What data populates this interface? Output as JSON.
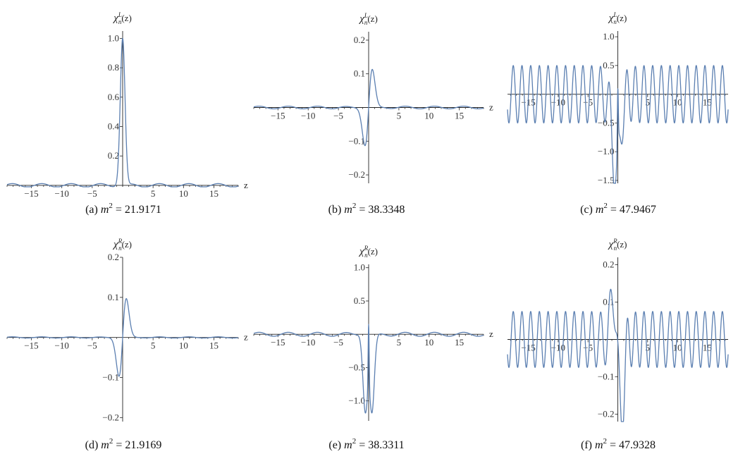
{
  "colors": {
    "curve": "#5b7fb1",
    "axis": "#222222"
  },
  "chart_data": [
    {
      "type": "line",
      "caption_tag": "(a)",
      "caption_value": "21.9171",
      "ylabel_base": "χ",
      "ylabel_super": "L",
      "ylabel_sub": "n",
      "ylabel_arg": "(z)",
      "xlabel": "z",
      "xlim": [
        -19,
        19
      ],
      "ylim": [
        -0.01,
        1.05
      ],
      "xticks": [
        -15,
        -10,
        -5,
        5,
        10,
        15
      ],
      "yticks": [
        0.2,
        0.4,
        0.6,
        0.8,
        1.0
      ],
      "peak": 1.0,
      "osc_amp": 0.012,
      "osc_freq": 1.3,
      "profile": "single_positive_peak"
    },
    {
      "type": "line",
      "caption_tag": "(b)",
      "caption_value": "38.3348",
      "ylabel_base": "χ",
      "ylabel_super": "L",
      "ylabel_sub": "n",
      "ylabel_arg": "(z)",
      "xlabel": "z",
      "xlim": [
        -19,
        19
      ],
      "ylim": [
        -0.225,
        0.225
      ],
      "xticks": [
        -15,
        -10,
        -5,
        5,
        10,
        15
      ],
      "yticks": [
        -0.2,
        -0.1,
        0.1,
        0.2
      ],
      "peak": 0.21,
      "osc_amp": 0.004,
      "osc_freq": 1.3,
      "profile": "odd_peak"
    },
    {
      "type": "line",
      "caption_tag": "(c)",
      "caption_value": "47.9467",
      "ylabel_base": "χ",
      "ylabel_super": "L",
      "ylabel_sub": "n",
      "ylabel_arg": "(z)",
      "xlabel": "",
      "xlim": [
        -18.5,
        18.5
      ],
      "ylim": [
        -1.55,
        1.1
      ],
      "xticks": [
        -15,
        -10,
        -5,
        5,
        10,
        15
      ],
      "yticks": [
        -1.5,
        -1.0,
        -0.5,
        0.5,
        1.0
      ],
      "peak": 1.4,
      "osc_amp": 0.5,
      "osc_freq": 4.3,
      "profile": "oscillatory_dip"
    },
    {
      "type": "line",
      "caption_tag": "(d)",
      "caption_value": "21.9169",
      "ylabel_base": "χ",
      "ylabel_super": "R",
      "ylabel_sub": "n",
      "ylabel_arg": "(z)",
      "xlabel": "z",
      "xlim": [
        -19,
        19
      ],
      "ylim": [
        -0.21,
        0.2
      ],
      "xticks": [
        -15,
        -10,
        -5,
        5,
        10,
        15
      ],
      "yticks": [
        -0.2,
        -0.1,
        0.1,
        0.2
      ],
      "peak": 0.18,
      "osc_amp": 0.0015,
      "osc_freq": 1.3,
      "profile": "odd_peak"
    },
    {
      "type": "line",
      "caption_tag": "(e)",
      "caption_value": "38.3311",
      "ylabel_base": "χ",
      "ylabel_super": "R",
      "ylabel_sub": "n",
      "ylabel_arg": "(z)",
      "xlabel": "z",
      "xlim": [
        -19,
        19
      ],
      "ylim": [
        -1.3,
        1.05
      ],
      "xticks": [
        -15,
        -10,
        -5,
        5,
        10,
        15
      ],
      "yticks": [
        -1.0,
        -0.5,
        0.5,
        1.0
      ],
      "peak": 1.0,
      "osc_amp": 0.03,
      "osc_freq": 1.3,
      "profile": "spike_dips"
    },
    {
      "type": "line",
      "caption_tag": "(f)",
      "caption_value": "47.9328",
      "ylabel_base": "χ",
      "ylabel_super": "R",
      "ylabel_sub": "n",
      "ylabel_arg": "(z)",
      "xlabel": "",
      "xlim": [
        -18.5,
        18.5
      ],
      "ylim": [
        -0.22,
        0.22
      ],
      "xticks": [
        -15,
        -10,
        -5,
        5,
        10,
        15
      ],
      "yticks": [
        -0.2,
        -0.1,
        0.1,
        0.2
      ],
      "peak": 0.2,
      "osc_amp": 0.075,
      "osc_freq": 4.3,
      "profile": "oscillatory_bump"
    }
  ]
}
